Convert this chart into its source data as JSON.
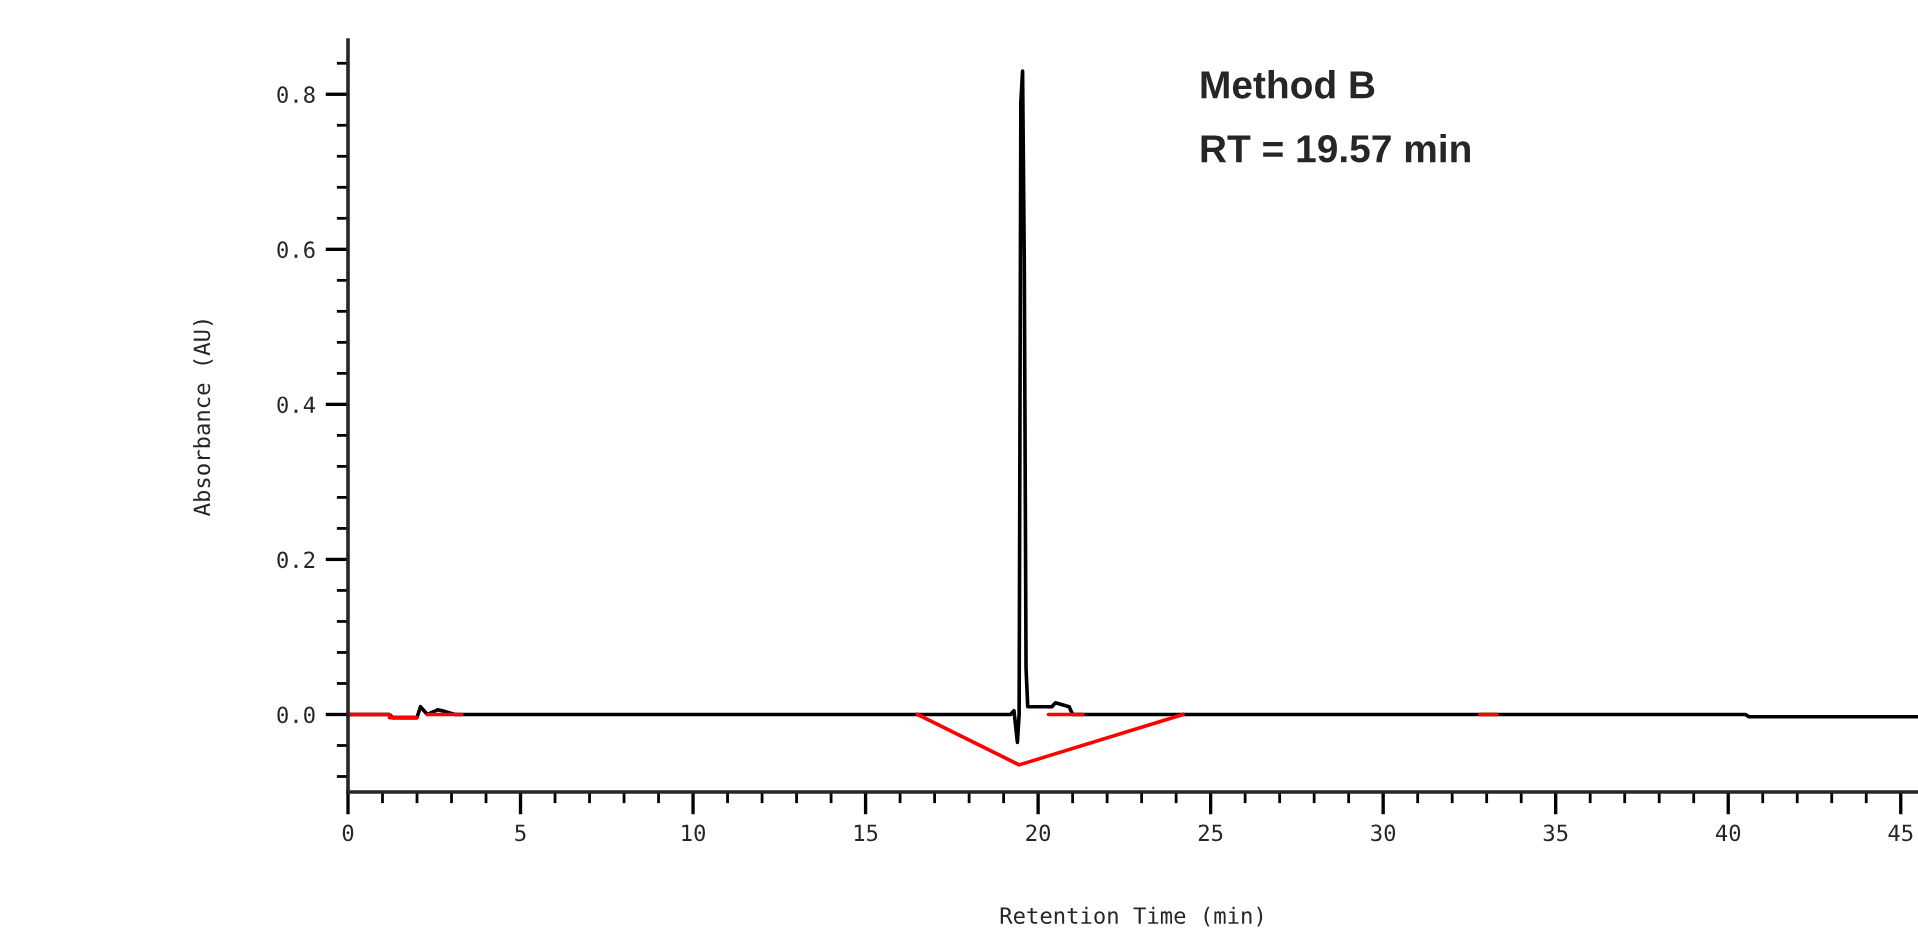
{
  "chart_data": {
    "type": "line",
    "xlabel": "Retention Time (min)",
    "ylabel": "Absorbance (AU)",
    "annotations": [
      "Method B",
      "RT = 19.57 min"
    ],
    "series": [
      {
        "color": "#000000",
        "x": [
          0,
          1.2,
          1.3,
          2.0,
          2.1,
          2.3,
          2.6,
          2.8,
          3.1,
          16.5,
          19.2,
          19.3,
          19.4,
          19.45,
          19.5,
          19.55,
          19.6,
          19.65,
          19.7,
          20.0,
          20.4,
          20.5,
          20.9,
          21.0,
          40.5,
          40.6,
          45.5
        ],
        "values": [
          0,
          0,
          -0.004,
          -0.004,
          0.01,
          0,
          0.006,
          0.004,
          0,
          0,
          0,
          0.005,
          -0.036,
          0.0,
          0.79,
          0.83,
          0.58,
          0.06,
          0.01,
          0.01,
          0.01,
          0.015,
          0.01,
          0,
          0,
          -0.003,
          -0.003
        ]
      },
      {
        "color": "#ff0000",
        "x": [
          0,
          1.2,
          null,
          1.2,
          2.0,
          null,
          2.3,
          3.3,
          null,
          16.5,
          19.45,
          24.2,
          null,
          20.3,
          21.3,
          null,
          32.8,
          33.3
        ],
        "values": [
          0,
          0,
          null,
          -0.004,
          -0.004,
          null,
          0,
          0,
          null,
          0,
          -0.065,
          0,
          null,
          0,
          0,
          null,
          0,
          0
        ]
      }
    ],
    "xlim": [
      0,
      45.5
    ],
    "ylim": [
      -0.1,
      0.87
    ],
    "xticks": [
      0,
      5,
      10,
      15,
      20,
      25,
      30,
      35,
      40,
      45
    ],
    "yticks": [
      {
        "value": 0,
        "label": "0.0"
      },
      {
        "value": 0.2,
        "label": "0.2"
      },
      {
        "value": 0.4,
        "label": "0.4"
      },
      {
        "value": 0.6,
        "label": "0.6"
      },
      {
        "value": 0.8,
        "label": "0.8"
      }
    ],
    "grid": false,
    "legend": false
  }
}
